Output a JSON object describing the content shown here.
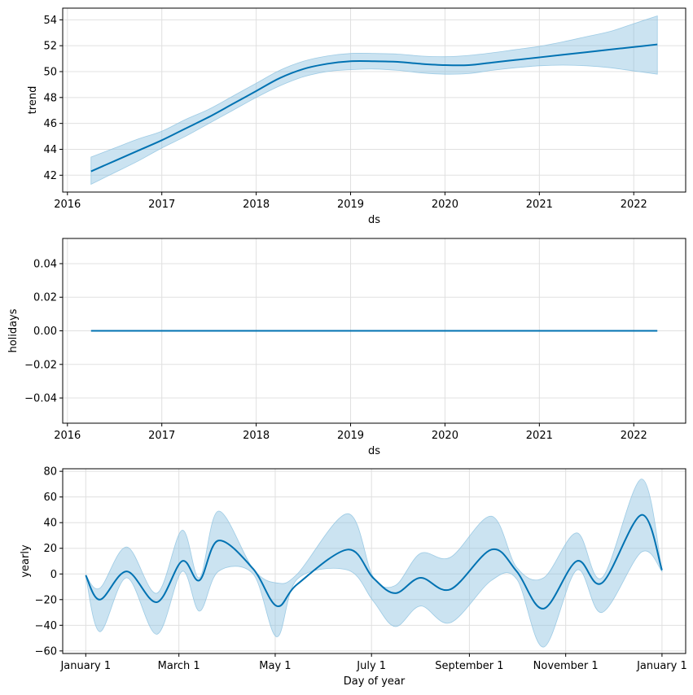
{
  "chart_data": [
    {
      "type": "line",
      "ylabel": "trend",
      "xlabel": "ds",
      "xlim": [
        2015.95,
        2022.55
      ],
      "ylim": [
        40.7,
        54.9
      ],
      "grid": true,
      "line_color": "#0072B2",
      "band_color": "#8CC2E0",
      "x_ticks": [
        2016,
        2017,
        2018,
        2019,
        2020,
        2021,
        2022
      ],
      "x_tick_labels": [
        "2016",
        "2017",
        "2018",
        "2019",
        "2020",
        "2021",
        "2022"
      ],
      "y_ticks": [
        42,
        44,
        46,
        48,
        50,
        52,
        54
      ],
      "y_tick_labels": [
        "42",
        "44",
        "46",
        "48",
        "50",
        "52",
        "54"
      ],
      "series": [
        {
          "x": [
            2016.25,
            2016.5,
            2016.75,
            2017.0,
            2017.25,
            2017.5,
            2017.75,
            2018.0,
            2018.25,
            2018.5,
            2018.75,
            2019.0,
            2019.25,
            2019.5,
            2019.75,
            2020.0,
            2020.25,
            2020.5,
            2020.75,
            2021.0,
            2021.25,
            2021.5,
            2021.75,
            2022.0,
            2022.25
          ],
          "y": [
            42.3,
            43.1,
            43.9,
            44.7,
            45.6,
            46.5,
            47.5,
            48.5,
            49.5,
            50.2,
            50.6,
            50.8,
            50.8,
            50.75,
            50.6,
            50.5,
            50.5,
            50.7,
            50.9,
            51.1,
            51.3,
            51.5,
            51.7,
            51.9,
            52.1
          ],
          "lower": [
            41.3,
            42.2,
            43.1,
            44.1,
            45.0,
            46.0,
            47.0,
            48.0,
            48.9,
            49.6,
            50.0,
            50.15,
            50.2,
            50.1,
            49.9,
            49.8,
            49.85,
            50.1,
            50.3,
            50.45,
            50.5,
            50.45,
            50.3,
            50.05,
            49.8
          ],
          "upper": [
            43.4,
            44.1,
            44.8,
            45.4,
            46.3,
            47.1,
            48.1,
            49.1,
            50.1,
            50.8,
            51.2,
            51.4,
            51.4,
            51.35,
            51.2,
            51.15,
            51.25,
            51.45,
            51.7,
            51.95,
            52.3,
            52.7,
            53.1,
            53.7,
            54.3
          ]
        }
      ]
    },
    {
      "type": "line",
      "ylabel": "holidays",
      "xlabel": "ds",
      "xlim": [
        2015.95,
        2022.55
      ],
      "ylim": [
        -0.055,
        0.055
      ],
      "grid": true,
      "line_color": "#0072B2",
      "x_ticks": [
        2016,
        2017,
        2018,
        2019,
        2020,
        2021,
        2022
      ],
      "x_tick_labels": [
        "2016",
        "2017",
        "2018",
        "2019",
        "2020",
        "2021",
        "2022"
      ],
      "y_ticks": [
        -0.04,
        -0.02,
        0.0,
        0.02,
        0.04
      ],
      "y_tick_labels": [
        "−0.04",
        "−0.02",
        "0.00",
        "0.02",
        "0.04"
      ],
      "series": [
        {
          "x": [
            2016.25,
            2022.25
          ],
          "y": [
            0.0,
            0.0
          ]
        }
      ]
    },
    {
      "type": "line",
      "ylabel": "yearly",
      "xlabel": "Day of year",
      "xlim": [
        -14.6,
        380.0
      ],
      "ylim": [
        -62,
        82
      ],
      "grid": true,
      "line_color": "#0072B2",
      "band_color": "#8CC2E0",
      "x_ticks": [
        0,
        59,
        120,
        181,
        243,
        304,
        365
      ],
      "x_tick_labels": [
        "January 1",
        "March 1",
        "May 1",
        "July 1",
        "September 1",
        "November 1",
        "January 1"
      ],
      "y_ticks": [
        -60,
        -40,
        -20,
        0,
        20,
        40,
        60,
        80
      ],
      "y_tick_labels": [
        "−60",
        "−40",
        "−20",
        "0",
        "20",
        "40",
        "60",
        "80"
      ],
      "series": [
        {
          "x": [
            0,
            9,
            26,
            45,
            61,
            72,
            84,
            106,
            121,
            134,
            166,
            182,
            196,
            212,
            231,
            257,
            273,
            290,
            311,
            327,
            352,
            365
          ],
          "y": [
            -1,
            -20,
            2,
            -22,
            10,
            -5,
            26,
            4,
            -25,
            -8,
            19,
            -3,
            -15,
            -3,
            -12,
            19,
            2,
            -27,
            10,
            -7,
            46,
            3
          ],
          "lower": [
            -2,
            -45,
            -3,
            -47,
            2,
            -29,
            2,
            0,
            -49,
            -4,
            3,
            -21,
            -41,
            -25,
            -38,
            -5,
            -4,
            -57,
            3,
            -30,
            17,
            2
          ],
          "upper": [
            -1,
            -11,
            21,
            -15,
            34,
            -3,
            49,
            4,
            -7,
            0,
            47,
            -2,
            -9,
            16,
            13,
            45,
            5,
            -3,
            32,
            -3,
            74,
            3
          ]
        }
      ]
    }
  ]
}
